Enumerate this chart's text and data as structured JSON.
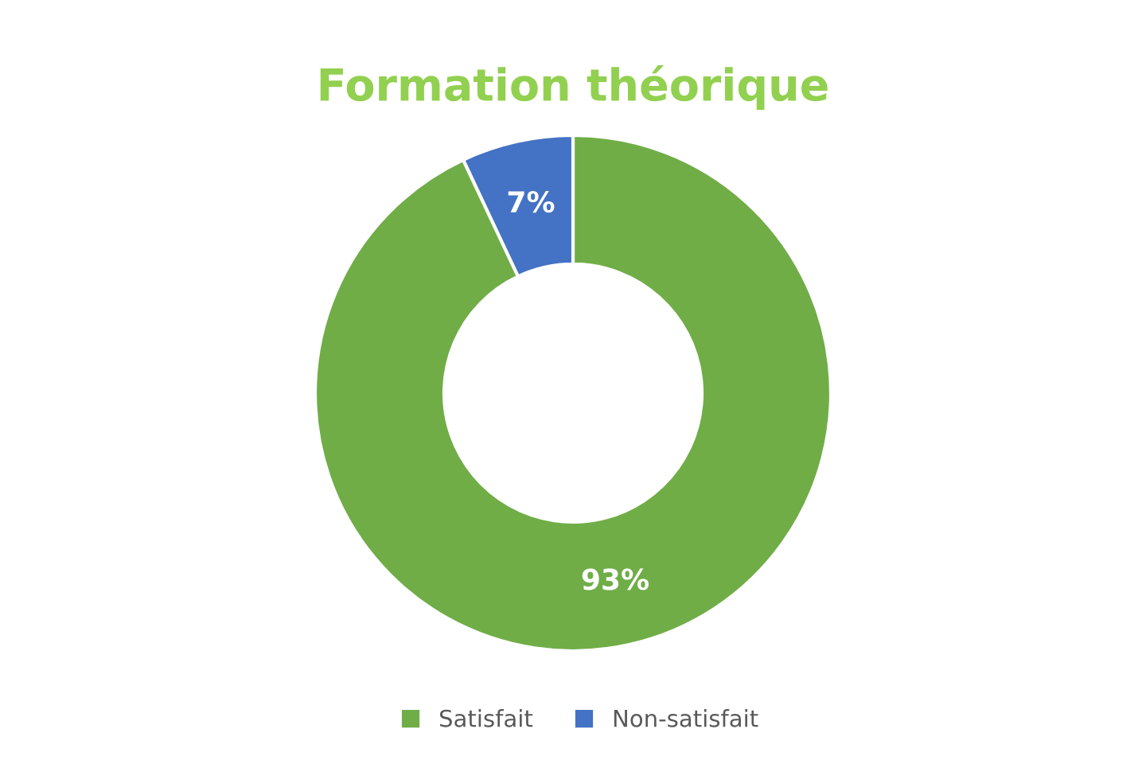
{
  "chart_data": {
    "type": "donut",
    "title": "Formation théorique",
    "categories": [
      "Satisfait",
      "Non-satisfait"
    ],
    "values": [
      93,
      7
    ],
    "colors": [
      "#70ad47",
      "#4472c4"
    ],
    "value_labels": [
      "93%",
      "7%"
    ],
    "legend": "bottom"
  }
}
